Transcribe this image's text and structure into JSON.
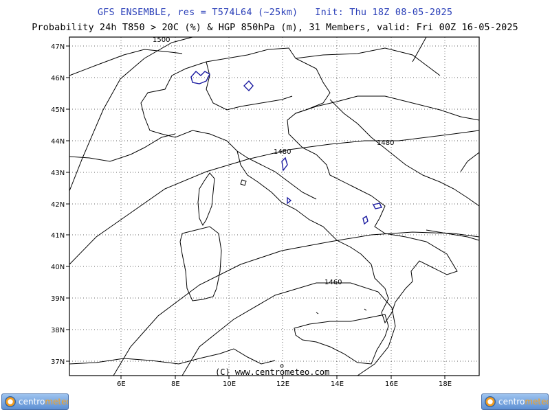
{
  "header": {
    "title_line1": "GFS ENSEMBLE, res = T574L64 (~25km)   Init: Thu 18Z 08-05-2025",
    "title_line2": "Probability 24h T850 > 20C (%) & HGP 850hPa (m), 31 Members, valid: Fri 00Z 16-05-2025"
  },
  "map": {
    "lat_labels": [
      "47N",
      "46N",
      "45N",
      "44N",
      "43N",
      "42N",
      "41N",
      "40N",
      "39N",
      "38N",
      "37N"
    ],
    "lon_labels": [
      "6E",
      "8E",
      "10E",
      "12E",
      "14E",
      "16E",
      "18E"
    ],
    "contour_labels": [
      "1500",
      "1480",
      "1480",
      "1460"
    ],
    "copyright": "(C) www.centrometeo.com",
    "colors": {
      "coastline": "#000000",
      "probability_contour": "#1a1aa0",
      "grid": "#555555"
    }
  },
  "footer": {
    "logo_left_part1": "centro",
    "logo_left_part2": "meteo",
    "logo_right_part1": "centro",
    "logo_right_part2": "meteo"
  }
}
